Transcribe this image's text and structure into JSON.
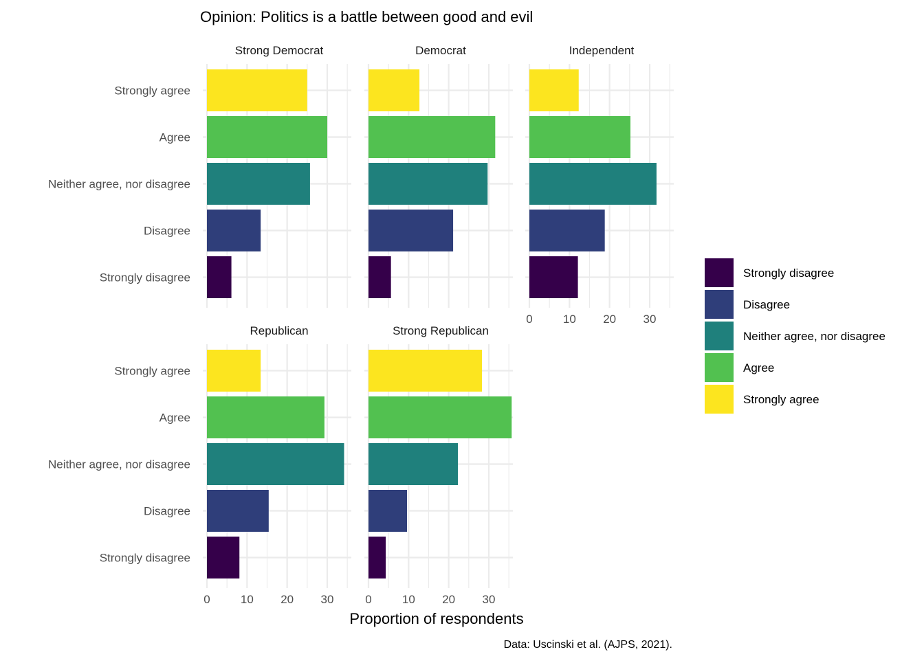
{
  "chart_data": {
    "type": "bar",
    "orientation": "horizontal",
    "title": "Opinion: Politics is a battle between good and evil",
    "xlabel": "Proportion of respondents",
    "ylabel": "",
    "caption": "Data: Uscinski et al. (AJPS, 2021).",
    "xlim": [
      0,
      36
    ],
    "x_ticks": [
      0,
      10,
      20,
      30
    ],
    "grid": true,
    "legend_position": "right",
    "categories": [
      "Strongly agree",
      "Agree",
      "Neither agree, nor disagree",
      "Disagree",
      "Strongly disagree"
    ],
    "legend": [
      {
        "label": "Strongly disagree",
        "color": "#35004a"
      },
      {
        "label": "Disagree",
        "color": "#2f3e7a"
      },
      {
        "label": "Neither agree, nor disagree",
        "color": "#1f807c"
      },
      {
        "label": "Agree",
        "color": "#52c150"
      },
      {
        "label": "Strongly agree",
        "color": "#fce51f"
      }
    ],
    "colors": {
      "Strongly agree": "#fce51f",
      "Agree": "#52c150",
      "Neither agree, nor disagree": "#1f807c",
      "Disagree": "#2f3e7a",
      "Strongly disagree": "#35004a"
    },
    "panels": [
      {
        "title": "Strong Democrat",
        "values": [
          25,
          30,
          25.7,
          13.4,
          6.1
        ]
      },
      {
        "title": "Democrat",
        "values": [
          12.7,
          31.6,
          29.7,
          21.1,
          5.6
        ]
      },
      {
        "title": "Independent",
        "values": [
          12.3,
          25.2,
          31.7,
          18.8,
          12.1
        ]
      },
      {
        "title": "Republican",
        "values": [
          13.4,
          29.3,
          34.2,
          15.4,
          8.1
        ]
      },
      {
        "title": "Strong Republican",
        "values": [
          28.3,
          35.7,
          22.3,
          9.6,
          4.3
        ]
      }
    ]
  }
}
